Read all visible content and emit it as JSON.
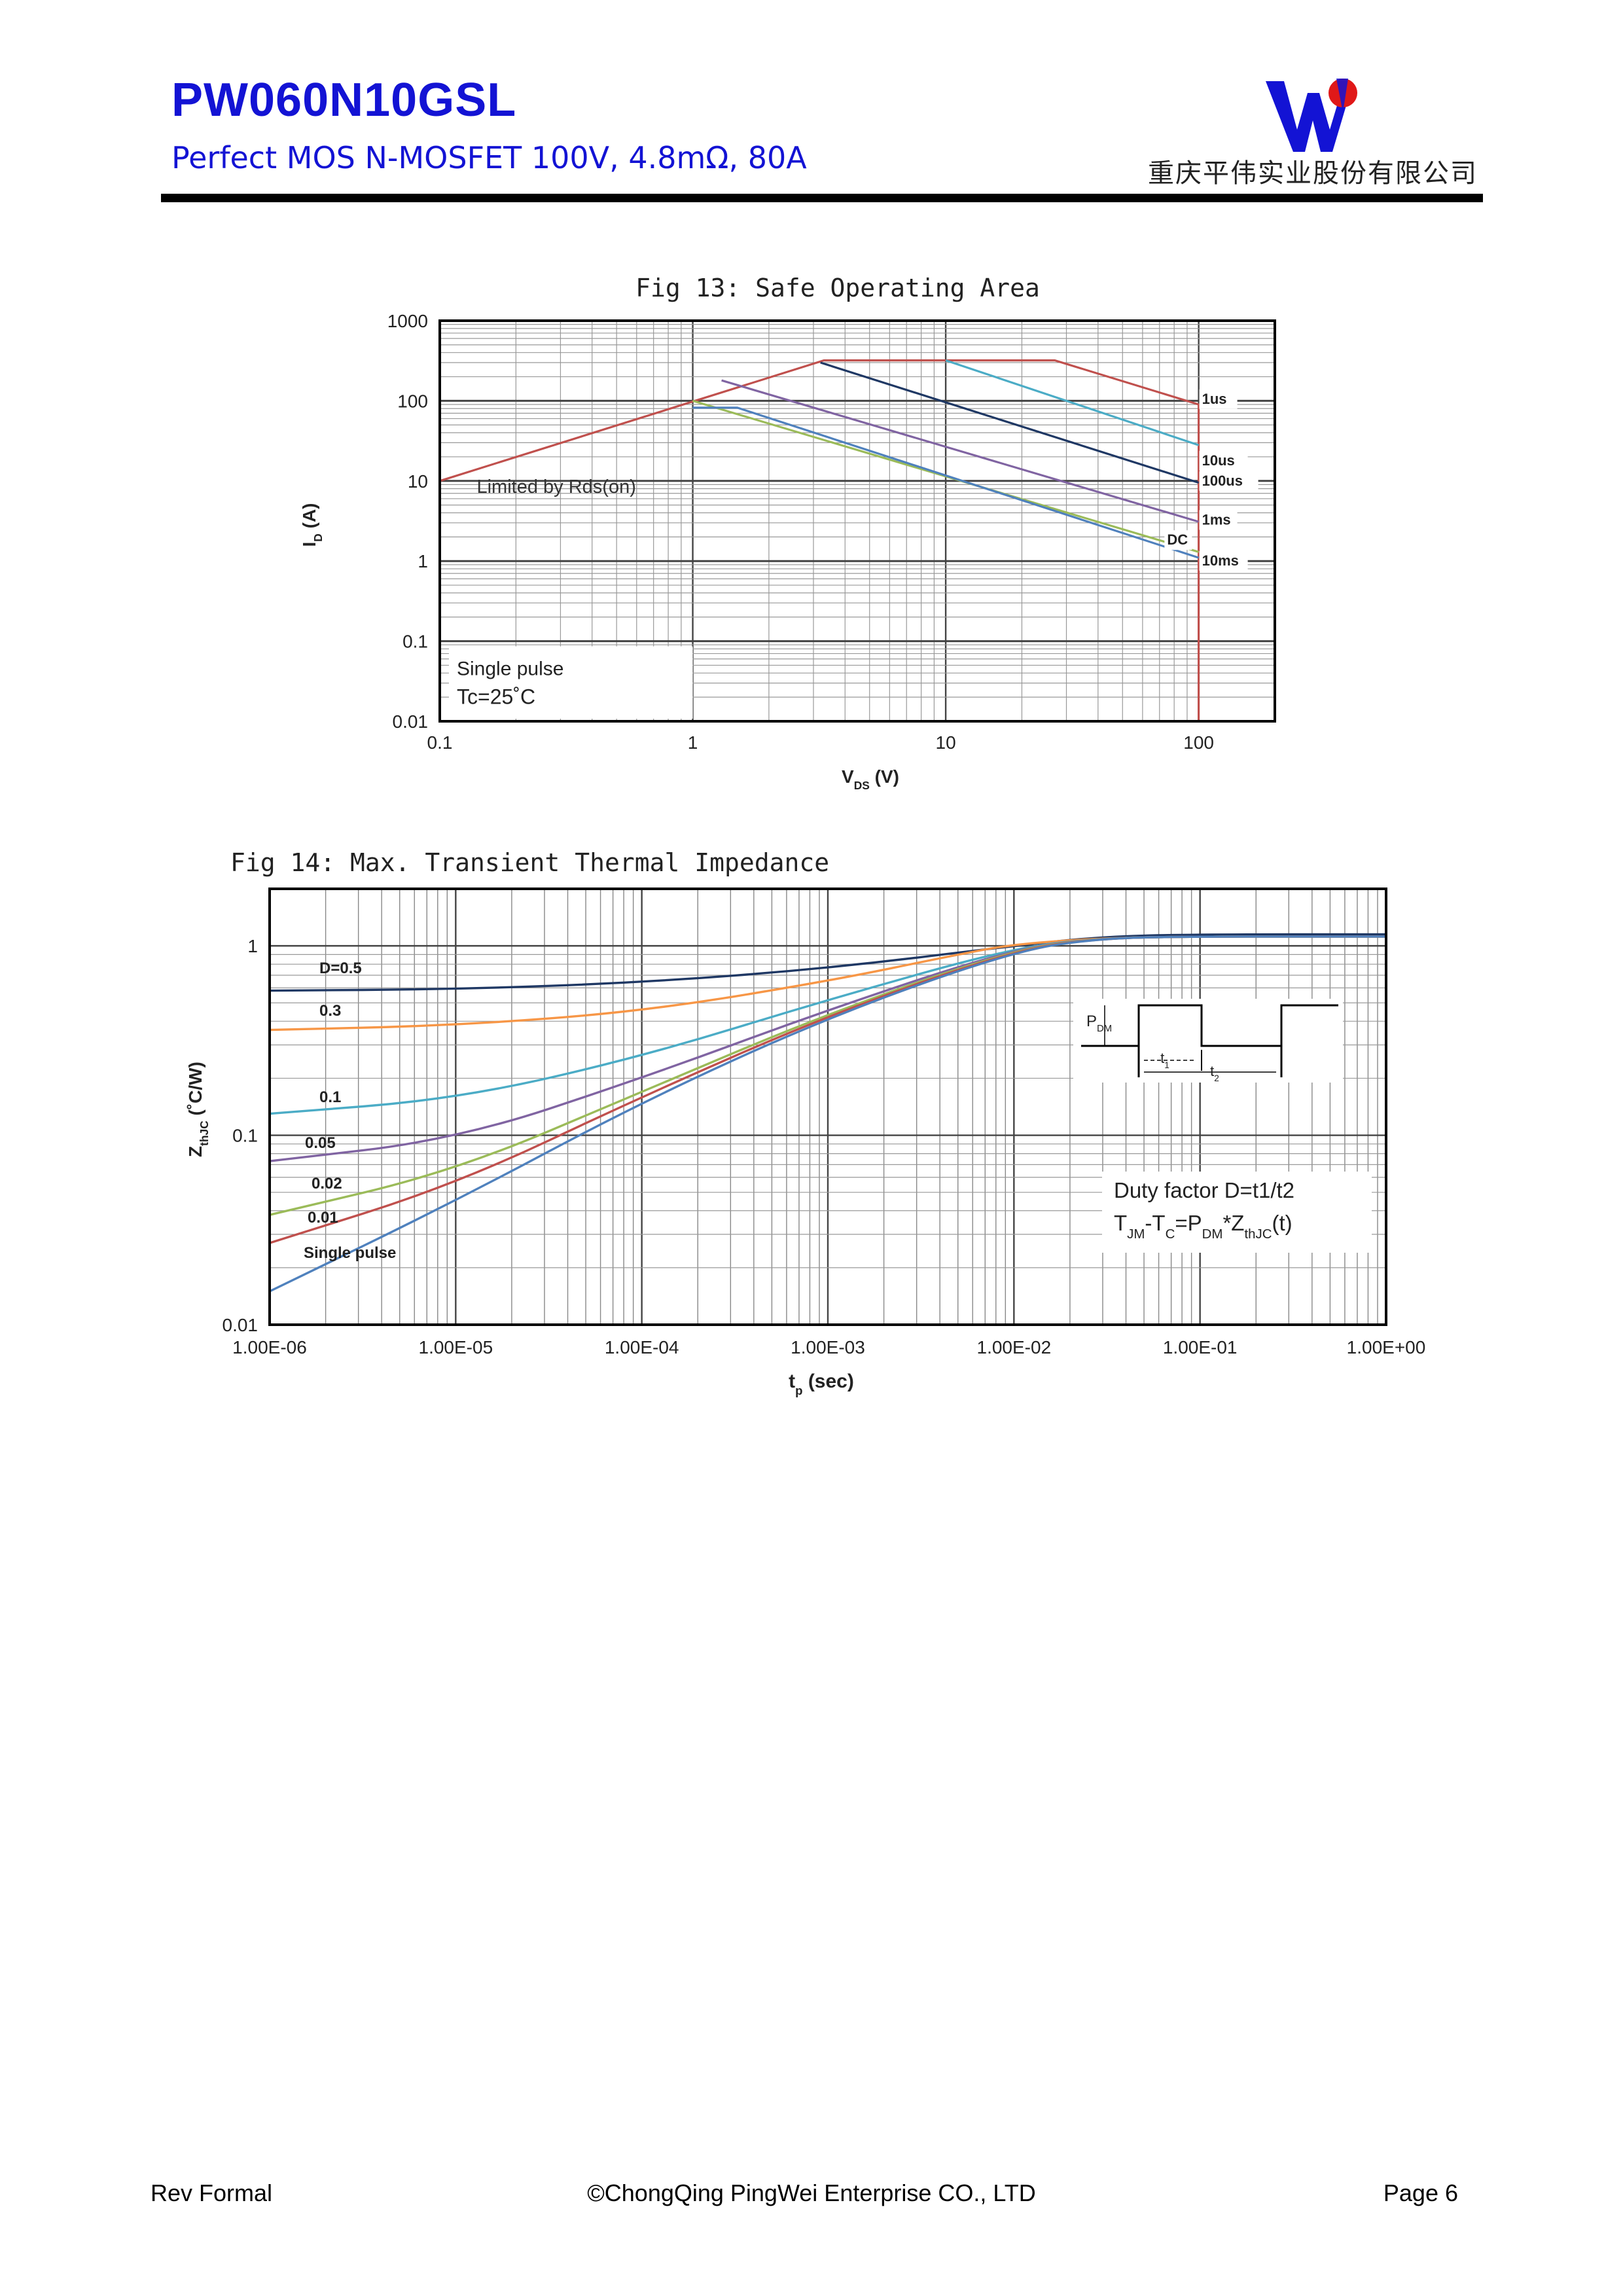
{
  "header": {
    "part_number": "PW060N10GSL",
    "subtitle": "Perfect MOS N-MOSFET 100V, 4.8mΩ, 80A",
    "company": "重庆平伟实业股份有限公司",
    "accent_color": "#1313d4"
  },
  "chart_data": [
    {
      "type": "line",
      "title": "Fig 13: Safe Operating Area",
      "xlabel": "V_DS (V)",
      "ylabel": "I_D (A)",
      "xscale": "log",
      "yscale": "log",
      "xlim": [
        0.1,
        200
      ],
      "ylim": [
        0.01,
        1000
      ],
      "xticks": [
        "0.1",
        "1",
        "10",
        "100"
      ],
      "yticks": [
        "0.01",
        "0.1",
        "1",
        "10",
        "100",
        "1000"
      ],
      "grid": true,
      "annotations": [
        "Limited by Rds(on)",
        "Single pulse",
        "Tc=25˚C"
      ],
      "series": [
        {
          "name": "1us",
          "color": "#c0504d",
          "points": [
            [
              0.1,
              10
            ],
            [
              3.3,
              320
            ],
            [
              27,
              320
            ],
            [
              100,
              90
            ],
            [
              100,
              0.01
            ]
          ]
        },
        {
          "name": "10us",
          "color": "#4bacc6",
          "points": [
            [
              10,
              320
            ],
            [
              100,
              28
            ]
          ]
        },
        {
          "name": "100us",
          "color": "#1f3864",
          "points": [
            [
              3.2,
              300
            ],
            [
              100,
              9.5
            ]
          ]
        },
        {
          "name": "1ms",
          "color": "#8064a2",
          "points": [
            [
              1.3,
              180
            ],
            [
              100,
              3.1
            ]
          ]
        },
        {
          "name": "10ms",
          "color": "#9bbb59",
          "points": [
            [
              1,
              100
            ],
            [
              100,
              1.3
            ]
          ]
        },
        {
          "name": "DC",
          "color": "#4f81bd",
          "points": [
            [
              1,
              82
            ],
            [
              1.5,
              82
            ],
            [
              100,
              1.1
            ]
          ]
        }
      ],
      "label_order": [
        "1us",
        "10us",
        "100us",
        "1ms",
        "DC",
        "10ms"
      ]
    },
    {
      "type": "line",
      "title": "Fig 14: Max. Transient Thermal Impedance",
      "xlabel": "t_p (sec)",
      "ylabel": "Z_thJC (˚C/W)",
      "xscale": "log",
      "yscale": "log",
      "xlim": [
        1e-06,
        1
      ],
      "ylim": [
        0.01,
        2
      ],
      "xticks": [
        "1.00E-06",
        "1.00E-05",
        "1.00E-04",
        "1.00E-03",
        "1.00E-02",
        "1.00E-01",
        "1.00E+00"
      ],
      "yticks": [
        "0.01",
        "0.1",
        "1"
      ],
      "grid": true,
      "annotations": [
        "Duty factor D=t1/t2",
        "T_JM-T_C=P_DM*Z_thJC(t)"
      ],
      "inset_labels": [
        "P_DM",
        "t1",
        "t2"
      ],
      "series": [
        {
          "name": "D=0.5",
          "color": "#1f3864",
          "points": [
            [
              1e-06,
              0.58
            ],
            [
              1e-05,
              0.59
            ],
            [
              0.0001,
              0.64
            ],
            [
              0.001,
              0.76
            ],
            [
              0.01,
              1.0
            ],
            [
              0.03,
              1.12
            ],
            [
              0.1,
              1.15
            ],
            [
              1,
              1.15
            ]
          ]
        },
        {
          "name": "0.3",
          "color": "#f79646",
          "points": [
            [
              1e-06,
              0.36
            ],
            [
              1e-05,
              0.38
            ],
            [
              0.0001,
              0.45
            ],
            [
              0.001,
              0.65
            ],
            [
              0.005,
              0.9
            ],
            [
              0.01,
              1.02
            ],
            [
              0.03,
              1.1
            ],
            [
              0.1,
              1.12
            ],
            [
              1,
              1.12
            ]
          ]
        },
        {
          "name": "0.1",
          "color": "#4bacc6",
          "points": [
            [
              1e-06,
              0.13
            ],
            [
              1e-05,
              0.155
            ],
            [
              0.0001,
              0.26
            ],
            [
              0.001,
              0.52
            ],
            [
              0.01,
              0.98
            ],
            [
              0.03,
              1.1
            ],
            [
              0.1,
              1.12
            ],
            [
              1,
              1.12
            ]
          ]
        },
        {
          "name": "0.05",
          "color": "#8064a2",
          "points": [
            [
              1e-06,
              0.073
            ],
            [
              1e-05,
              0.095
            ],
            [
              0.0001,
              0.2
            ],
            [
              0.001,
              0.46
            ],
            [
              0.01,
              0.97
            ],
            [
              0.03,
              1.1
            ],
            [
              0.1,
              1.12
            ],
            [
              1,
              1.12
            ]
          ]
        },
        {
          "name": "0.02",
          "color": "#9bbb59",
          "points": [
            [
              1e-06,
              0.038
            ],
            [
              1e-05,
              0.065
            ],
            [
              0.0001,
              0.17
            ],
            [
              0.001,
              0.44
            ],
            [
              0.01,
              0.96
            ],
            [
              0.03,
              1.1
            ],
            [
              0.1,
              1.12
            ],
            [
              1,
              1.12
            ]
          ]
        },
        {
          "name": "0.01",
          "color": "#c0504d",
          "points": [
            [
              1e-06,
              0.027
            ],
            [
              1e-05,
              0.055
            ],
            [
              0.0001,
              0.16
            ],
            [
              0.001,
              0.43
            ],
            [
              0.01,
              0.95
            ],
            [
              0.03,
              1.1
            ],
            [
              0.1,
              1.12
            ],
            [
              1,
              1.12
            ]
          ]
        },
        {
          "name": "Single pulse",
          "color": "#4f81bd",
          "points": [
            [
              1e-06,
              0.015
            ],
            [
              1e-05,
              0.045
            ],
            [
              0.0001,
              0.15
            ],
            [
              0.001,
              0.42
            ],
            [
              0.01,
              0.94
            ],
            [
              0.03,
              1.1
            ],
            [
              0.1,
              1.12
            ],
            [
              1,
              1.12
            ]
          ]
        }
      ]
    }
  ],
  "footer": {
    "rev": "Rev Formal",
    "copyright": "©ChongQing PingWei Enterprise CO., LTD",
    "page": "Page 6"
  }
}
